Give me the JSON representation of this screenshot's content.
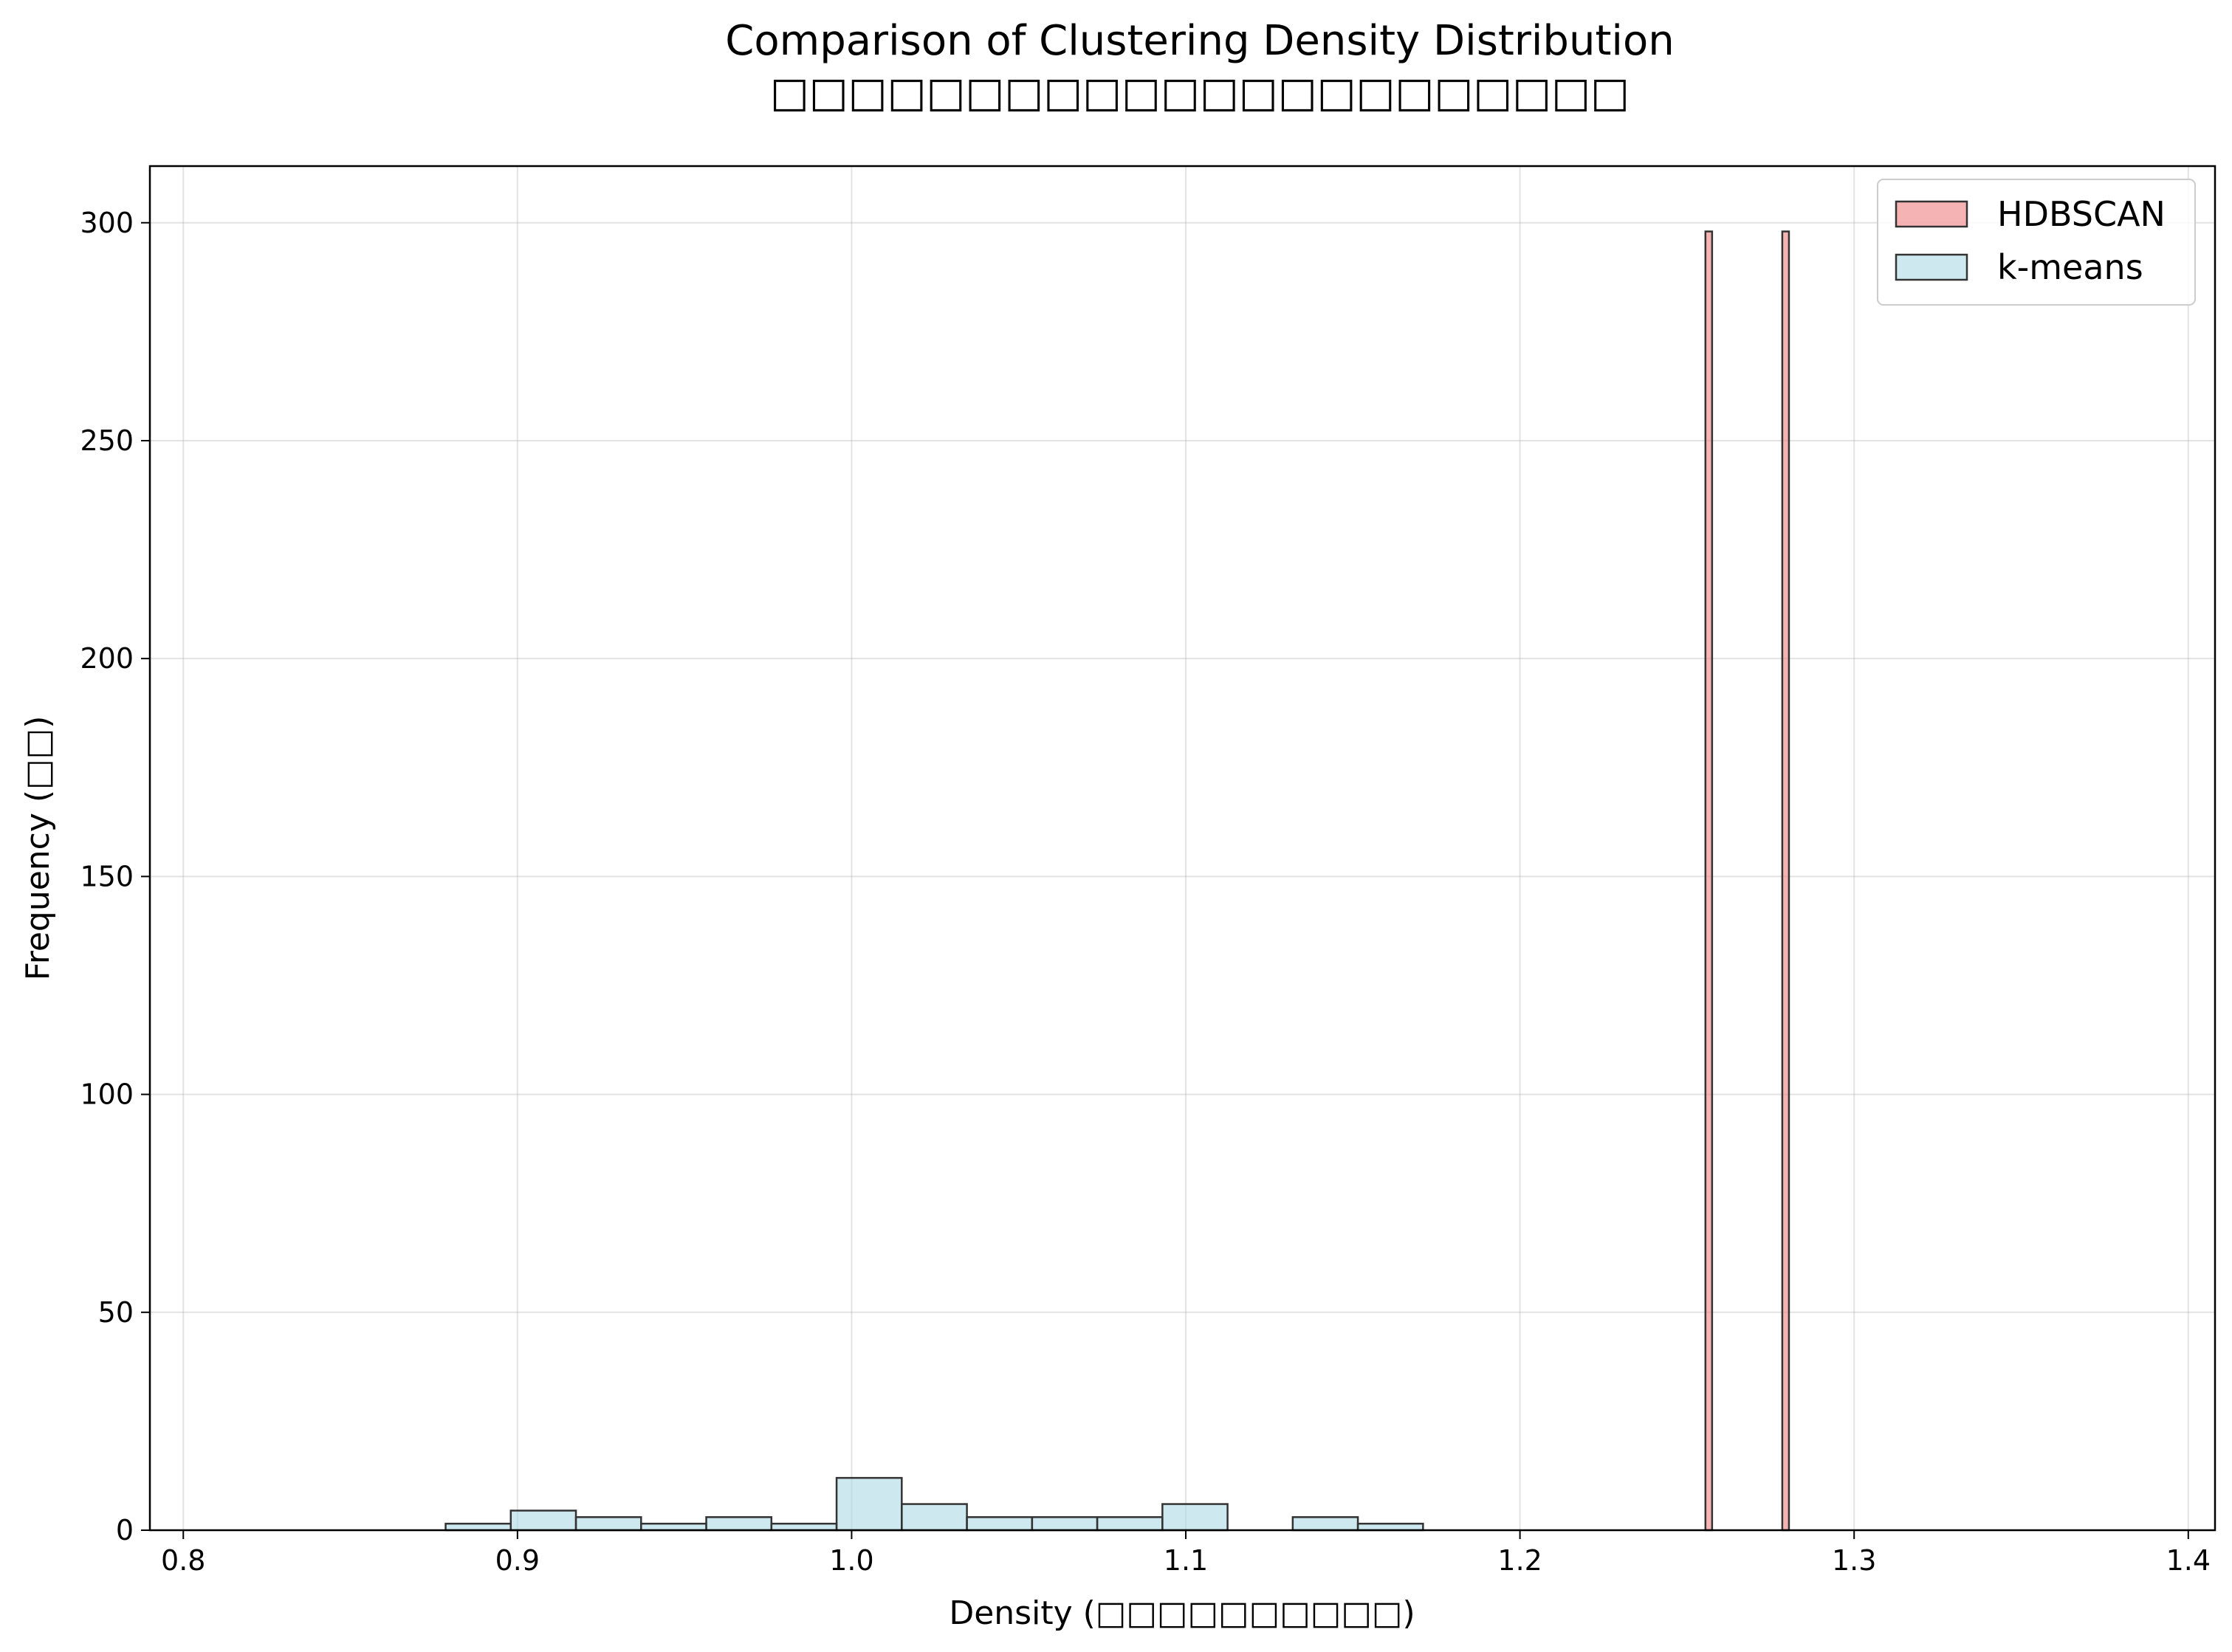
{
  "chart_data": {
    "type": "bar",
    "subtype": "histogram",
    "title": "Comparison of Clustering Density Distribution",
    "subtitle": "□□□□□□□□□□□□□□□□□□□□□□",
    "xlabel": "Density (□□□□□□□□□□)",
    "ylabel": "Frequency (□□)",
    "xlim": [
      0.79,
      1.408
    ],
    "ylim": [
      0,
      313
    ],
    "xticks": [
      "0.8",
      "0.9",
      "1.0",
      "1.1",
      "1.2",
      "1.3",
      "1.4"
    ],
    "yticks": [
      "0",
      "50",
      "100",
      "150",
      "200",
      "250",
      "300"
    ],
    "grid": true,
    "legend_position": "top-right",
    "series": [
      {
        "name": "HDBSCAN",
        "color": "#f08080",
        "opacity": 0.6,
        "bins": [
          {
            "x0": 1.2555,
            "x1": 1.2575,
            "count": 298
          },
          {
            "x0": 1.2785,
            "x1": 1.2805,
            "count": 298
          }
        ]
      },
      {
        "name": "k-means",
        "color": "#add8e6",
        "opacity": 0.6,
        "bins": [
          {
            "x0": 0.8785,
            "x1": 0.898,
            "count": 1.5
          },
          {
            "x0": 0.898,
            "x1": 0.9175,
            "count": 4.5
          },
          {
            "x0": 0.9175,
            "x1": 0.937,
            "count": 3
          },
          {
            "x0": 0.937,
            "x1": 0.9565,
            "count": 1.5
          },
          {
            "x0": 0.9565,
            "x1": 0.976,
            "count": 3
          },
          {
            "x0": 0.976,
            "x1": 0.9955,
            "count": 1.5
          },
          {
            "x0": 0.9955,
            "x1": 1.015,
            "count": 12
          },
          {
            "x0": 1.015,
            "x1": 1.0345,
            "count": 6
          },
          {
            "x0": 1.0345,
            "x1": 1.054,
            "count": 3
          },
          {
            "x0": 1.054,
            "x1": 1.0735,
            "count": 3
          },
          {
            "x0": 1.0735,
            "x1": 1.093,
            "count": 3
          },
          {
            "x0": 1.093,
            "x1": 1.1125,
            "count": 6
          },
          {
            "x0": 1.132,
            "x1": 1.1515,
            "count": 3
          },
          {
            "x0": 1.1515,
            "x1": 1.171,
            "count": 1.5
          }
        ]
      }
    ]
  }
}
